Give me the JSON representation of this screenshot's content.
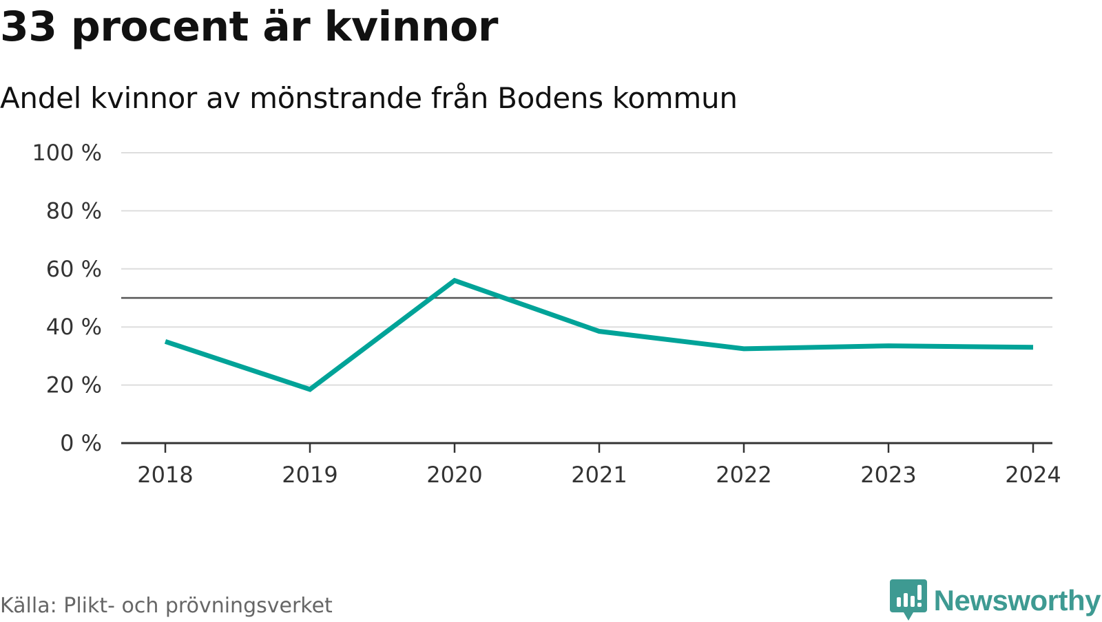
{
  "header": {
    "title": "33 procent är kvinnor",
    "subtitle": "Andel kvinnor av mönstrande från Bodens kommun"
  },
  "footer": {
    "source": "Källa: Plikt- och prövningsverket",
    "brand": "Newsworthy"
  },
  "colors": {
    "line": "#00a398",
    "reference_line": "#555555",
    "grid": "#dddddd",
    "axis": "#333333",
    "brand": "#3e9a92"
  },
  "chart_data": {
    "type": "line",
    "categories": [
      "2018",
      "2019",
      "2020",
      "2021",
      "2022",
      "2023",
      "2024"
    ],
    "series": [
      {
        "values": [
          35,
          18.5,
          56,
          38.5,
          32.5,
          33.5,
          33
        ]
      }
    ],
    "reference_value": 50,
    "ylim": [
      0,
      100
    ],
    "yticks": [
      0,
      20,
      40,
      60,
      80,
      100
    ],
    "ytick_labels": [
      "0 %",
      "20 %",
      "40 %",
      "60 %",
      "80 %",
      "100 %"
    ],
    "grid": true
  }
}
